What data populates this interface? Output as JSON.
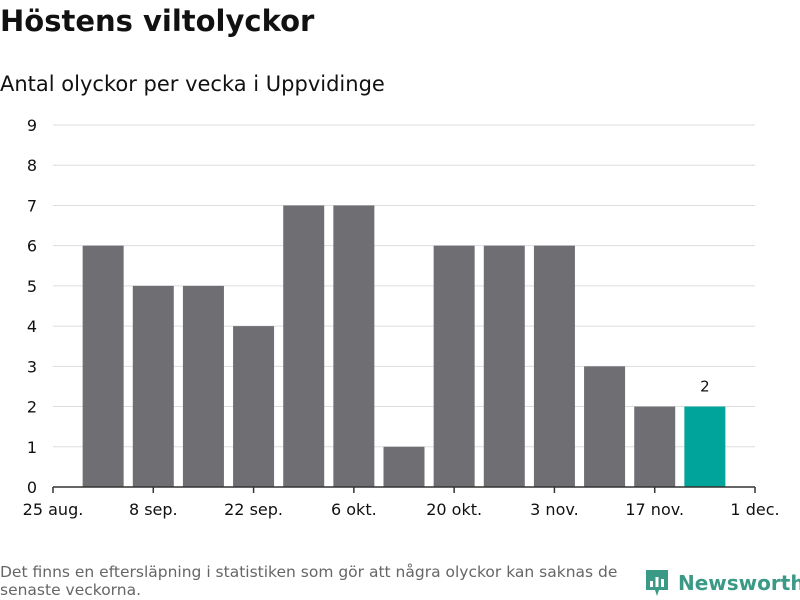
{
  "title": "Höstens viltolyckor",
  "subtitle": "Antal olyckor per vecka i Uppvidinge",
  "footnote": "Det finns en eftersläpning i statistiken som gör att några olyckor kan saknas de senaste veckorna.",
  "brand": {
    "name": "Newsworthy",
    "icon": "newsworthy-logo-icon"
  },
  "colors": {
    "bar": "#6f6e73",
    "highlight": "#00a49a",
    "grid": "#dddddd",
    "text": "#111111",
    "brand": "#3a9a85"
  },
  "chart_data": {
    "type": "bar",
    "title": "Höstens viltolyckor",
    "subtitle": "Antal olyckor per vecka i Uppvidinge",
    "xlabel": "",
    "ylabel": "",
    "ylim": [
      0,
      9
    ],
    "yticks": [
      0,
      1,
      2,
      3,
      4,
      5,
      6,
      7,
      8,
      9
    ],
    "xticks": [
      "25 aug.",
      "8 sep.",
      "22 sep.",
      "6 okt.",
      "20 okt.",
      "3 nov.",
      "17 nov.",
      "1 dec."
    ],
    "categories": [
      "2024-09-01",
      "2024-09-08",
      "2024-09-15",
      "2024-09-22",
      "2024-09-29",
      "2024-10-06",
      "2024-10-13",
      "2024-10-20",
      "2024-10-27",
      "2024-11-03",
      "2024-11-10",
      "2024-11-17",
      "2024-11-24"
    ],
    "values": [
      6,
      5,
      5,
      4,
      7,
      7,
      1,
      6,
      6,
      6,
      3,
      2,
      2
    ],
    "highlight_index": 12,
    "data_labels": [
      {
        "index": 12,
        "text": "2"
      }
    ],
    "grid": true
  }
}
